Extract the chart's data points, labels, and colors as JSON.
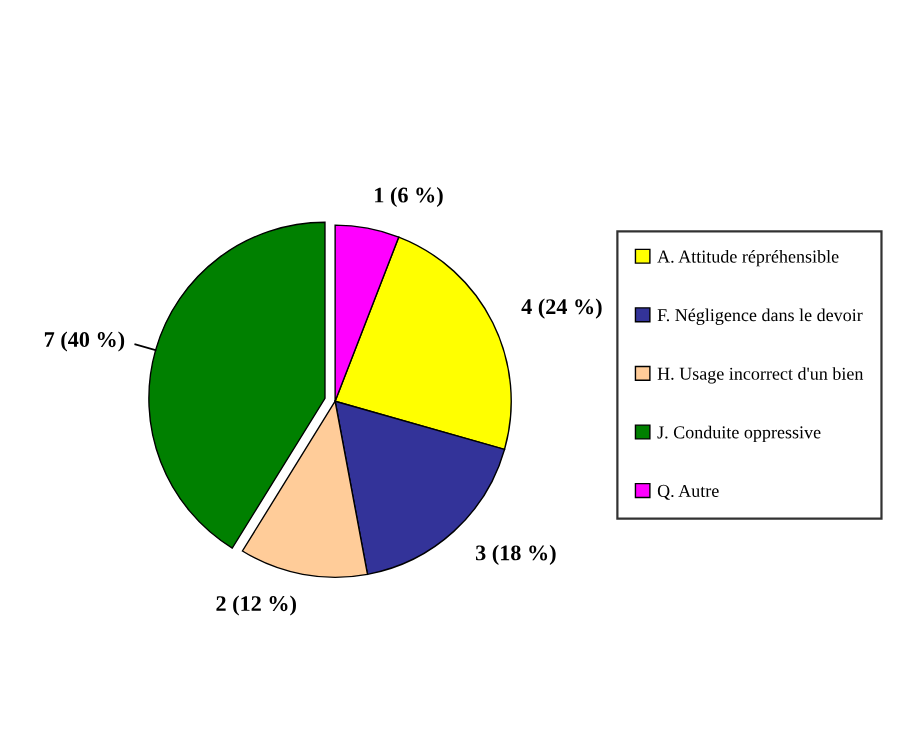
{
  "chart_data": {
    "type": "pie",
    "categories": [
      "A. Attitude répréhensible",
      "F. Négligence dans le devoir",
      "H. Usage incorrect d'un bien",
      "J. Conduite oppressive",
      "Q. Autre"
    ],
    "values": [
      4,
      3,
      2,
      7,
      1
    ],
    "value_labels": [
      "4 (24 %)",
      "3 (18 %)",
      "2 (12 %)",
      "7 (40 %)",
      "1 (6 %)"
    ],
    "colors": [
      "#ffff00",
      "#333399",
      "#ffcc99",
      "#008000",
      "#ff00ff"
    ],
    "legend": "right"
  }
}
